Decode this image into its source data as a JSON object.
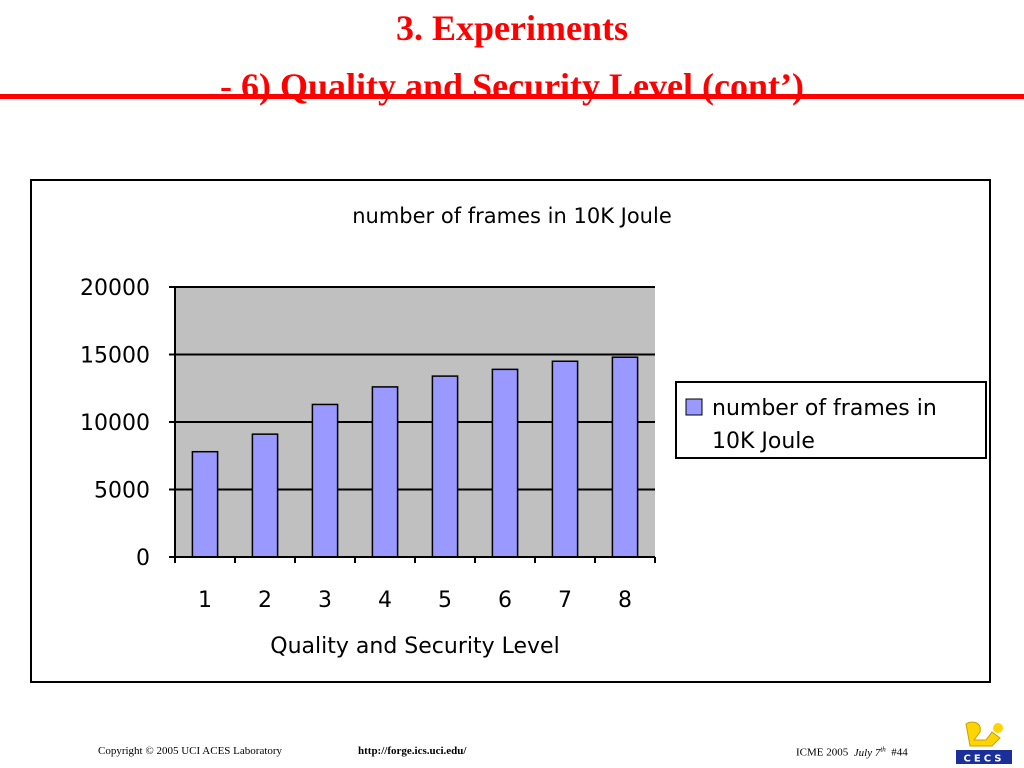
{
  "slide": {
    "title_line1": "3. Experiments",
    "title_line2": "- 6) Quality and Security Level (cont’)",
    "title_color": "#ff0000"
  },
  "footer": {
    "copyright": "Copyright © 2005  UCI ACES Laboratory",
    "url": "http://forge.ics.uci.edu/",
    "conference": "ICME 2005",
    "date_main": "July 7",
    "date_sup": "th",
    "slide_number": "#44",
    "logo_text": "CECS"
  },
  "chart_data": {
    "type": "bar",
    "title": "number of frames in 10K Joule",
    "xlabel": "Quality and Security Level",
    "ylabel": "",
    "categories": [
      "1",
      "2",
      "3",
      "4",
      "5",
      "6",
      "7",
      "8"
    ],
    "series": [
      {
        "name": "number of frames in 10K Joule",
        "values": [
          7800,
          9100,
          11300,
          12600,
          13400,
          13900,
          14500,
          14800
        ]
      }
    ],
    "ylim": [
      0,
      20000
    ],
    "yticks": [
      "0",
      "5000",
      "10000",
      "15000",
      "20000"
    ],
    "legend": {
      "position": "right",
      "lines": [
        "number of frames in",
        "10K Joule"
      ]
    },
    "grid": true,
    "plot_background": "#c0c0c0",
    "bar_color": "#9999ff"
  }
}
